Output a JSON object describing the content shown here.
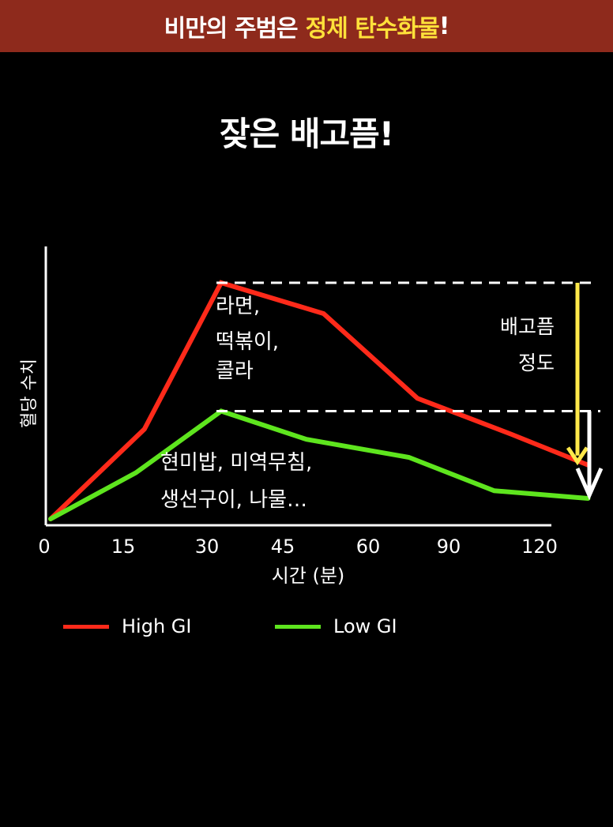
{
  "banner": {
    "part1": "비만의 주범은",
    "part2": "정제 탄수화물",
    "part3": "!"
  },
  "headline": "잦은 배고픔!",
  "colors": {
    "high": "#ff2a1a",
    "low": "#5ee51e",
    "arrow_yellow": "#ffe84a",
    "arrow_white": "#ffffff",
    "banner_bg": "#8e2a1c"
  },
  "chart_data": {
    "type": "line",
    "xlabel": "시간 (분)",
    "ylabel": "혈당 수치",
    "x_ticks": [
      "0",
      "15",
      "30",
      "45",
      "60",
      "90",
      "120"
    ],
    "series": [
      {
        "name": "High GI",
        "color": "#ff2a1a",
        "points": [
          [
            0,
            0
          ],
          [
            1.1,
            35
          ],
          [
            2.0,
            92
          ],
          [
            3.2,
            80
          ],
          [
            4.3,
            47
          ],
          [
            5.4,
            33
          ],
          [
            6.3,
            21
          ]
        ],
        "annotation": [
          "라면,",
          "떡볶이,",
          "콜라"
        ]
      },
      {
        "name": "Low GI",
        "color": "#5ee51e",
        "points": [
          [
            0,
            0
          ],
          [
            1.0,
            18
          ],
          [
            2.0,
            42
          ],
          [
            3.0,
            31
          ],
          [
            4.2,
            24
          ],
          [
            5.2,
            11
          ],
          [
            6.3,
            8
          ]
        ],
        "annotation": [
          "현미밥, 미역무침,",
          "생선구이, 나물…"
        ]
      }
    ],
    "ylim": [
      0,
      100
    ],
    "xlim": [
      0,
      6.3
    ],
    "gap_label": [
      "배고픔",
      "정도"
    ],
    "legend_position": "bottom-left",
    "grid": false
  }
}
